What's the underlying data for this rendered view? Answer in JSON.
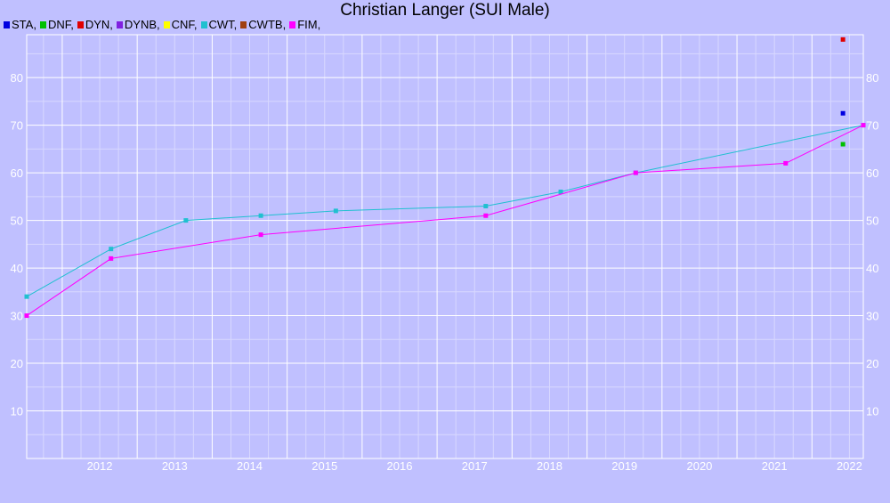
{
  "chart_data": {
    "type": "line",
    "title": "Christian Langer (SUI Male)",
    "xlabel": "",
    "ylabel": "",
    "x_ticks": [
      "2012",
      "2013",
      "2014",
      "2015",
      "2016",
      "2017",
      "2018",
      "2019",
      "2020",
      "2021",
      "2022"
    ],
    "y_ticks": [
      10,
      20,
      30,
      40,
      50,
      60,
      70,
      80
    ],
    "ylim": [
      0,
      89
    ],
    "xlim": [
      "2011-07-12",
      "2022-09-08"
    ],
    "grid": true,
    "legend_position": "top-left",
    "legend": [
      {
        "label": "STA,",
        "color": "#0000e0"
      },
      {
        "label": "DNF,",
        "color": "#00c000"
      },
      {
        "label": "DYN,",
        "color": "#e00000"
      },
      {
        "label": "DYNB,",
        "color": "#8020e0"
      },
      {
        "label": "CNF,",
        "color": "#ffff00"
      },
      {
        "label": "CWT,",
        "color": "#20c0d0"
      },
      {
        "label": "CWTB,",
        "color": "#a04010"
      },
      {
        "label": "FIM,",
        "color": "#ff00ff"
      }
    ],
    "series": [
      {
        "name": "CWT",
        "color": "#20c0d0",
        "line": true,
        "points": [
          {
            "x": "2011-07-12",
            "y": 34
          },
          {
            "x": "2012-08-26",
            "y": 44
          },
          {
            "x": "2013-08-26",
            "y": 50
          },
          {
            "x": "2014-08-26",
            "y": 51
          },
          {
            "x": "2015-08-26",
            "y": 52
          },
          {
            "x": "2017-08-26",
            "y": 53
          },
          {
            "x": "2018-08-26",
            "y": 56
          },
          {
            "x": "2019-08-26",
            "y": 60
          },
          {
            "x": "2022-09-08",
            "y": 70
          }
        ]
      },
      {
        "name": "FIM",
        "color": "#ff00ff",
        "line": true,
        "points": [
          {
            "x": "2011-07-12",
            "y": 30
          },
          {
            "x": "2012-08-26",
            "y": 42
          },
          {
            "x": "2014-08-26",
            "y": 47
          },
          {
            "x": "2017-08-26",
            "y": 51
          },
          {
            "x": "2019-08-26",
            "y": 60
          },
          {
            "x": "2021-08-26",
            "y": 62
          },
          {
            "x": "2022-09-08",
            "y": 70
          }
        ]
      },
      {
        "name": "DYN",
        "color": "#e00000",
        "line": false,
        "points": [
          {
            "x": "2022-06-01",
            "y": 88
          }
        ]
      },
      {
        "name": "STA",
        "color": "#0000e0",
        "line": false,
        "points": [
          {
            "x": "2022-06-01",
            "y": 72.5
          }
        ]
      },
      {
        "name": "DNF",
        "color": "#00c000",
        "line": false,
        "points": [
          {
            "x": "2022-06-01",
            "y": 66
          }
        ]
      }
    ]
  }
}
